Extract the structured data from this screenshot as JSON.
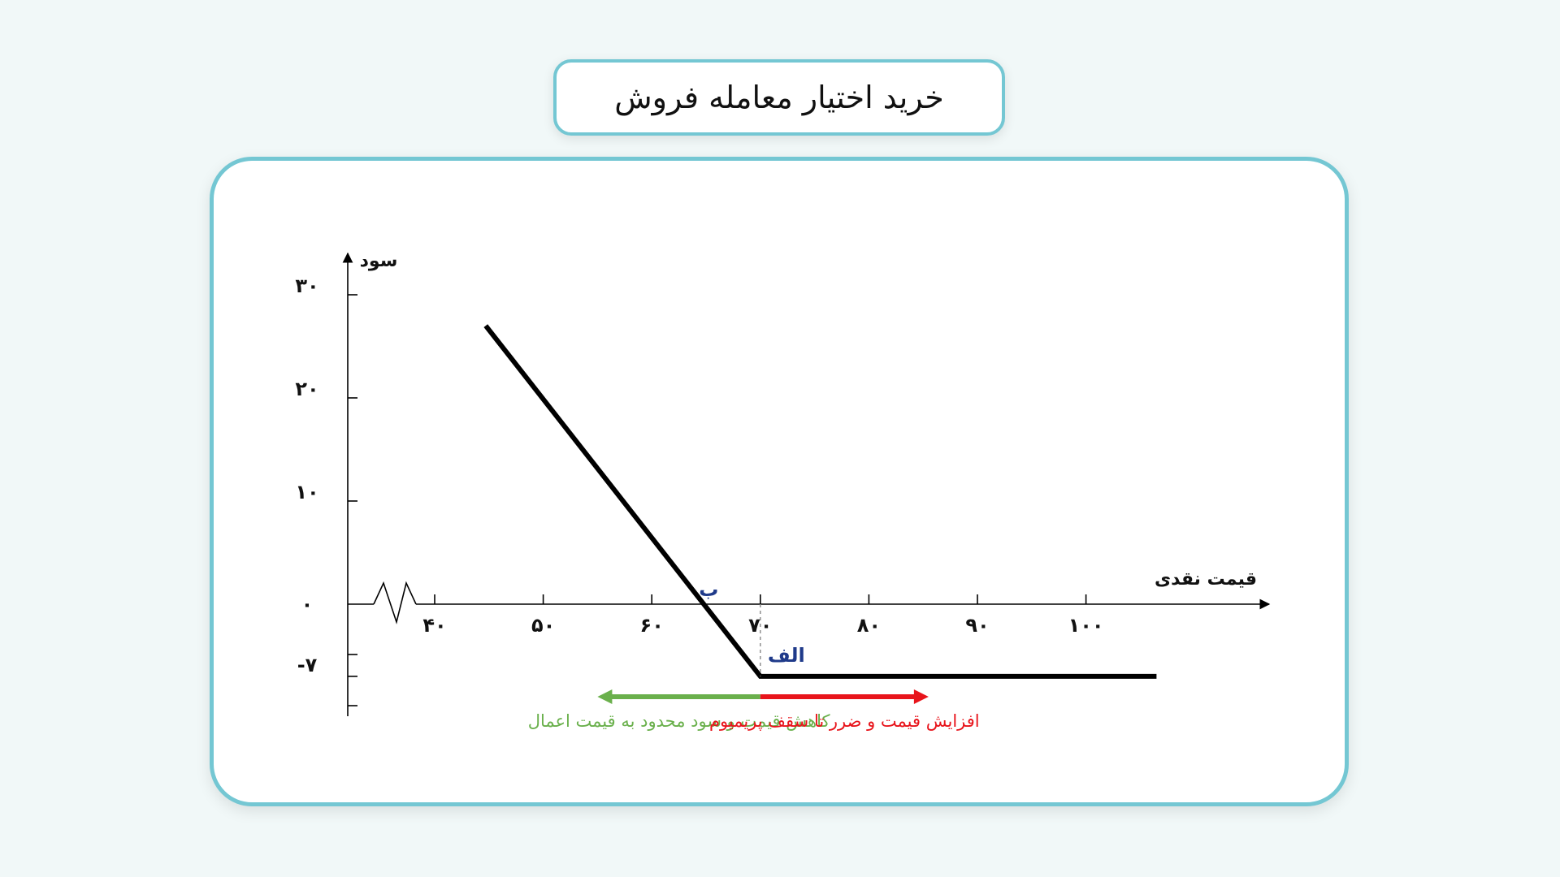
{
  "title": "خرید اختیار معامله فروش",
  "chart_data": {
    "type": "line",
    "title": "خرید اختیار معامله فروش",
    "xlabel": "قیمت نقدی",
    "ylabel": "سود",
    "x_ticks": [
      {
        "value": 40,
        "label": "۴۰"
      },
      {
        "value": 50,
        "label": "۵۰"
      },
      {
        "value": 60,
        "label": "۶۰"
      },
      {
        "value": 70,
        "label": "۷۰"
      },
      {
        "value": 80,
        "label": "۸۰"
      },
      {
        "value": 90,
        "label": "۹۰"
      },
      {
        "value": 100,
        "label": "۱۰۰"
      }
    ],
    "y_ticks": [
      {
        "value": 30,
        "label": "۳۰"
      },
      {
        "value": 20,
        "label": "۲۰"
      },
      {
        "value": 10,
        "label": "۱۰"
      },
      {
        "value": 0,
        "label": "۰"
      },
      {
        "value": -7,
        "label": "-۷"
      }
    ],
    "xlim": [
      32,
      110
    ],
    "ylim": [
      -11,
      34
    ],
    "axis_break": true,
    "series": [
      {
        "points": [
          {
            "x": 44.7,
            "y": 27
          },
          {
            "x": 70,
            "y": -7
          },
          {
            "x": 106.5,
            "y": -7
          }
        ],
        "color": "#000000"
      }
    ],
    "annotations": [
      {
        "id": "breakeven",
        "label": "ب",
        "x": 63,
        "y": 0,
        "color": "#1f3a8a"
      },
      {
        "id": "strike",
        "label": "الف",
        "x": 70,
        "y": -7,
        "color": "#1f3a8a"
      }
    ],
    "ranges": [
      {
        "id": "decrease",
        "label": "کاهش قیمت و سود محدود به قیمت اعمال",
        "x_from": 70,
        "x_to": 55,
        "color": "#6ab04c"
      },
      {
        "id": "increase",
        "label": "افزایش قیمت و ضرر تا سقف پریمیوم",
        "x_from": 70,
        "x_to": 85.5,
        "color": "#e8141b"
      }
    ],
    "grid": false
  }
}
